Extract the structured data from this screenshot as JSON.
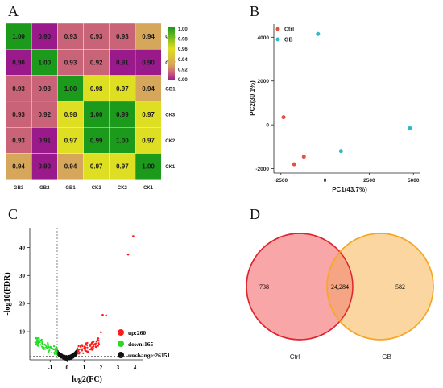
{
  "colors": {
    "green": "#1b9a1b",
    "yellow": "#dede22",
    "tan": "#d6a65a",
    "rose": "#c96377",
    "magenta": "#9a1a8c",
    "ctrl": "#e8503c",
    "gb": "#2cb9c9",
    "up": "#ff1a1a",
    "down": "#22dd22",
    "unchange": "#111111",
    "venn_ctrl_fill": "#f8a6a8",
    "venn_ctrl_edge": "#e0242e",
    "venn_gb_fill": "#fbd6a0",
    "venn_gb_edge": "#f5a623",
    "venn_overlap": "#f5a583"
  },
  "chart_data": [
    {
      "panel": "A",
      "type": "heatmap",
      "rows": [
        "GB3",
        "GB2",
        "GB1",
        "CK3",
        "CK2",
        "CK1"
      ],
      "cols": [
        "GB3",
        "GB2",
        "GB1",
        "CK3",
        "CK2",
        "CK1"
      ],
      "values": [
        [
          1.0,
          0.9,
          0.93,
          0.93,
          0.93,
          0.94
        ],
        [
          0.9,
          1.0,
          0.93,
          0.92,
          0.91,
          0.9
        ],
        [
          0.93,
          0.93,
          1.0,
          0.98,
          0.97,
          0.94
        ],
        [
          0.93,
          0.92,
          0.98,
          1.0,
          0.99,
          0.97
        ],
        [
          0.93,
          0.91,
          0.97,
          0.99,
          1.0,
          0.97
        ],
        [
          0.94,
          0.9,
          0.94,
          0.97,
          0.97,
          1.0
        ]
      ],
      "colorbar": {
        "min": 0.9,
        "max": 1.0,
        "ticks": [
          "1.00",
          "0.98",
          "0.96",
          "0.94",
          "0.92",
          "0.90"
        ]
      }
    },
    {
      "panel": "B",
      "type": "scatter",
      "xlabel": "PC1(43.7%)",
      "ylabel": "PC2(30.1%)",
      "xlim": [
        -2900,
        5400
      ],
      "ylim": [
        -2200,
        4600
      ],
      "xticks": [
        -2500,
        0,
        2500,
        5000
      ],
      "yticks": [
        -2000,
        0,
        2000,
        4000
      ],
      "legend": [
        "Ctrl",
        "GB"
      ],
      "series": [
        {
          "name": "Ctrl",
          "points": [
            [
              -2350,
              350
            ],
            [
              -1750,
              -1800
            ],
            [
              -1200,
              -1450
            ]
          ]
        },
        {
          "name": "GB",
          "points": [
            [
              -400,
              4150
            ],
            [
              900,
              -1200
            ],
            [
              4800,
              -150
            ]
          ]
        }
      ]
    },
    {
      "panel": "C",
      "type": "scatter",
      "xlabel": "log2(FC)",
      "ylabel": "-log10(FDR)",
      "xlim": [
        -2.2,
        4.5
      ],
      "ylim": [
        0,
        47
      ],
      "xticks": [
        "-1",
        "0",
        "1",
        "2",
        "3",
        "4"
      ],
      "yticks": [
        "10",
        "20",
        "30",
        "40"
      ],
      "thresholds": {
        "fc": [
          -0.585,
          0.585
        ],
        "fdr": 1.3
      },
      "legend": [
        {
          "name": "up",
          "label": "up:260"
        },
        {
          "name": "down",
          "label": "down:165"
        },
        {
          "name": "unchange",
          "label": "unchange:26151"
        }
      ],
      "highlighted_up_points": [
        [
          3.9,
          44
        ],
        [
          3.6,
          37.5
        ],
        [
          2.1,
          16
        ],
        [
          2.3,
          15.8
        ],
        [
          2.0,
          9.8
        ]
      ]
    },
    {
      "panel": "D",
      "type": "venn",
      "sets": [
        {
          "name": "Ctrl",
          "only": "738"
        },
        {
          "name": "GB",
          "only": "582"
        }
      ],
      "intersection": "24,284"
    }
  ]
}
